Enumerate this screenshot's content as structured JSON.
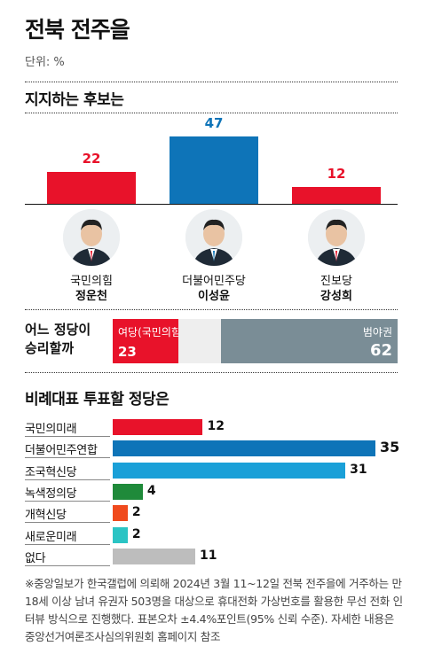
{
  "header": {
    "title": "전북 전주을",
    "unit": "단위: %"
  },
  "chart_data": [
    {
      "type": "bar",
      "title": "지지하는 후보는",
      "categories": [
        "정운천",
        "이성윤",
        "강성희"
      ],
      "values": [
        22,
        47,
        12
      ],
      "colors": [
        "#e8122a",
        "#0e74b8",
        "#e8122a"
      ],
      "candidates": [
        {
          "party": "국민의힘",
          "name": "정운천"
        },
        {
          "party": "더불어민주당",
          "name": "이성윤"
        },
        {
          "party": "진보당",
          "name": "강성희"
        }
      ]
    },
    {
      "type": "bar",
      "title": "어느 정당이 승리할까",
      "title_lines": [
        "어느 정당이",
        "승리할까"
      ],
      "segments": [
        {
          "label": "여당(국민의힘)",
          "value": 23,
          "color": "#e8122a"
        },
        {
          "label": "",
          "value": 15,
          "color": "#eeeeee"
        },
        {
          "label": "범야권",
          "value": 62,
          "color": "#7a8d96"
        }
      ]
    },
    {
      "type": "bar",
      "title": "비례대표 투표할 정당은",
      "categories": [
        "국민의미래",
        "더불어민주연합",
        "조국혁신당",
        "녹색정의당",
        "개혁신당",
        "새로운미래",
        "없다"
      ],
      "values": [
        12,
        35,
        31,
        4,
        2,
        2,
        11
      ],
      "colors": [
        "#e8122a",
        "#0e74b8",
        "#1aa0d8",
        "#1f8a3a",
        "#f04a1d",
        "#2bc4c4",
        "#bdbdbd"
      ]
    }
  ],
  "footnote": "※중앙일보가 한국갤럽에 의뢰해 2024년 3월 11~12일 전북 전주을에 거주하는 만 18세 이상 남녀 유권자 503명을 대상으로 휴대전화 가상번호를 활용한 무선 전화 인터뷰 방식으로 진행했다. 표본오차 ±4.4%포인트(95% 신뢰 수준). 자세한 내용은 중앙선거여론조사심의위원회 홈페이지 참조"
}
